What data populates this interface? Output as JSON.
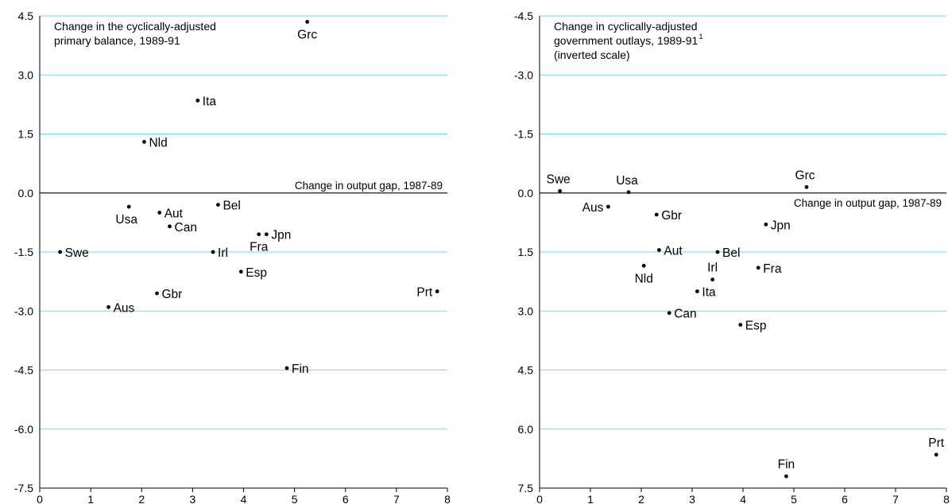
{
  "colors": {
    "gridline": "#66e0ee",
    "axis": "#000000",
    "zero_line": "#1a1a1a",
    "marker": "#000000"
  },
  "chart_data": [
    {
      "type": "scatter",
      "title_lines": [
        "Change in the cyclically-adjusted",
        "primary balance, 1989-91"
      ],
      "title_footnote": "",
      "xlabel": "Change in output gap, 1987-89",
      "xlim": [
        0,
        8
      ],
      "ylim": [
        -7.5,
        4.5
      ],
      "inverted_y": false,
      "grid": true,
      "x_ticks": [
        "0",
        "1",
        "2",
        "3",
        "4",
        "5",
        "6",
        "7",
        "8"
      ],
      "y_ticks": [
        "4.5",
        "3.0",
        "1.5",
        "0.0",
        "-1.5",
        "-3.0",
        "-4.5",
        "-6.0",
        "-7.5"
      ],
      "points": [
        {
          "label": "Grc",
          "x": 5.25,
          "y": 4.35,
          "pos": "below"
        },
        {
          "label": "Ita",
          "x": 3.1,
          "y": 2.35,
          "pos": "right"
        },
        {
          "label": "Nld",
          "x": 2.05,
          "y": 1.3,
          "pos": "right"
        },
        {
          "label": "Usa",
          "x": 1.75,
          "y": -0.35,
          "pos": "below-left"
        },
        {
          "label": "Aut",
          "x": 2.35,
          "y": -0.5,
          "pos": "right"
        },
        {
          "label": "Bel",
          "x": 3.5,
          "y": -0.3,
          "pos": "right"
        },
        {
          "label": "Can",
          "x": 2.55,
          "y": -0.85,
          "pos": "right"
        },
        {
          "label": "Fra",
          "x": 4.3,
          "y": -1.05,
          "pos": "below"
        },
        {
          "label": "Jpn",
          "x": 4.45,
          "y": -1.05,
          "pos": "right"
        },
        {
          "label": "Swe",
          "x": 0.4,
          "y": -1.5,
          "pos": "right"
        },
        {
          "label": "Irl",
          "x": 3.4,
          "y": -1.5,
          "pos": "right"
        },
        {
          "label": "Esp",
          "x": 3.95,
          "y": -2.0,
          "pos": "right"
        },
        {
          "label": "Gbr",
          "x": 2.3,
          "y": -2.55,
          "pos": "right"
        },
        {
          "label": "Prt",
          "x": 7.8,
          "y": -2.5,
          "pos": "left"
        },
        {
          "label": "Aus",
          "x": 1.35,
          "y": -2.9,
          "pos": "right"
        },
        {
          "label": "Fin",
          "x": 4.85,
          "y": -4.45,
          "pos": "right"
        }
      ]
    },
    {
      "type": "scatter",
      "title_lines": [
        "Change in cyclically-adjusted",
        "government outlays, 1989-91",
        "(inverted scale)"
      ],
      "title_footnote": "1",
      "xlabel": "Change in output gap, 1987-89",
      "xlim": [
        0,
        8
      ],
      "ylim": [
        -4.5,
        7.5
      ],
      "inverted_y": true,
      "grid": true,
      "x_ticks": [
        "0",
        "1",
        "2",
        "3",
        "4",
        "5",
        "6",
        "7",
        "8"
      ],
      "y_ticks": [
        "-4.5",
        "-3.0",
        "-1.5",
        "0.0",
        "1.5",
        "3.0",
        "4.5",
        "6.0",
        "7.5"
      ],
      "points": [
        {
          "label": "Swe",
          "x": 0.4,
          "y": -0.05,
          "pos": "above-left"
        },
        {
          "label": "Usa",
          "x": 1.75,
          "y": -0.02,
          "pos": "above-right"
        },
        {
          "label": "Grc",
          "x": 5.25,
          "y": -0.15,
          "pos": "above-left"
        },
        {
          "label": "Aus",
          "x": 1.35,
          "y": 0.35,
          "pos": "left"
        },
        {
          "label": "Gbr",
          "x": 2.3,
          "y": 0.55,
          "pos": "right"
        },
        {
          "label": "Jpn",
          "x": 4.45,
          "y": 0.8,
          "pos": "right"
        },
        {
          "label": "Aut",
          "x": 2.35,
          "y": 1.45,
          "pos": "right"
        },
        {
          "label": "Bel",
          "x": 3.5,
          "y": 1.5,
          "pos": "right"
        },
        {
          "label": "Fra",
          "x": 4.3,
          "y": 1.9,
          "pos": "right"
        },
        {
          "label": "Nld",
          "x": 2.05,
          "y": 1.85,
          "pos": "below"
        },
        {
          "label": "Irl",
          "x": 3.4,
          "y": 2.2,
          "pos": "above"
        },
        {
          "label": "Ita",
          "x": 3.1,
          "y": 2.5,
          "pos": "right"
        },
        {
          "label": "Can",
          "x": 2.55,
          "y": 3.05,
          "pos": "right"
        },
        {
          "label": "Esp",
          "x": 3.95,
          "y": 3.35,
          "pos": "right"
        },
        {
          "label": "Prt",
          "x": 7.8,
          "y": 6.65,
          "pos": "above"
        },
        {
          "label": "Fin",
          "x": 4.85,
          "y": 7.2,
          "pos": "above"
        }
      ]
    }
  ]
}
